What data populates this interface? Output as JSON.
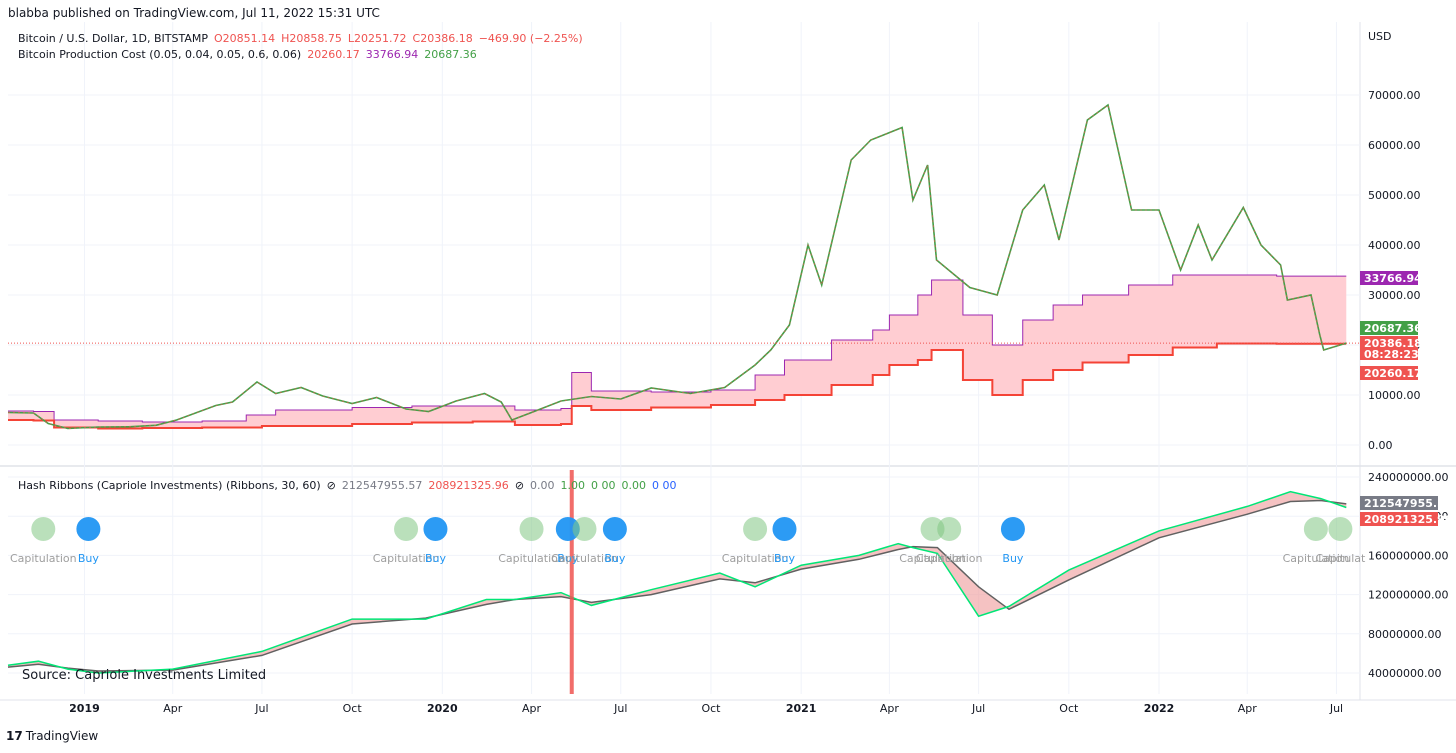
{
  "header": {
    "publisher": "blabba published on TradingView.com, Jul 11, 2022 15:31 UTC",
    "currency": "USD"
  },
  "legend_main": {
    "symbol": "Bitcoin / U.S. Dollar, 1D, BITSTAMP",
    "o": "O20851.14",
    "h": "H20858.75",
    "l": "L20251.72",
    "c": "C20386.18",
    "chg": "−469.90 (−2.25%)"
  },
  "legend_cost": {
    "name": "Bitcoin Production Cost (0.05, 0.04, 0.05, 0.6, 0.06)",
    "v1": "20260.17",
    "v2": "33766.94",
    "v3": "20687.36"
  },
  "legend_hash": {
    "name": "Hash Ribbons (Capriole Investments) (Ribbons, 30, 60)",
    "eye": "⊘",
    "v1": "212547955.57",
    "v2": "208921325.96",
    "eye2": "⊘",
    "v3": "0.00",
    "v4": "1.00",
    "v5": "0 00",
    "v6": "0.00",
    "v7": "0 00"
  },
  "source": "Source: Capriole Investments Limited",
  "footer": {
    "logo": "17",
    "brand": "TradingView"
  },
  "colors": {
    "price_up": "#26a69a",
    "price_down": "#ef5350",
    "ma_green": "#43a047",
    "cost_purple": "#9c27b0",
    "cost_red": "#f44336",
    "fill": "#ffcdd2",
    "hash_green": "#00e676",
    "hash_grey": "#616161"
  },
  "chart_data": [
    {
      "type": "line",
      "title": "Bitcoin / U.S. Dollar, 1D, BITSTAMP",
      "ylabel": "USD",
      "ylim": [
        -5000,
        80000
      ],
      "y_ticks": [
        "0.00",
        "10000.00",
        "20000.00",
        "30000.00",
        "40000.00",
        "50000.00",
        "60000.00",
        "70000.00"
      ],
      "x_ticks": [
        "2019",
        "Apr",
        "Jul",
        "Oct",
        "2020",
        "Apr",
        "Jul",
        "Oct",
        "2021",
        "Apr",
        "Jul",
        "Oct",
        "2022",
        "Apr",
        "Jul"
      ],
      "x_range": [
        "2018-10-15",
        "2022-07-25"
      ],
      "price_tags": [
        "33766.94",
        "20687.36",
        "20386.18",
        "08:28:23",
        "20260.17"
      ],
      "series": [
        {
          "name": "Bitcoin / U.S. Dollar",
          "points": [
            [
              "2018-10-15",
              6500
            ],
            [
              "2018-11-10",
              6400
            ],
            [
              "2018-11-25",
              4300
            ],
            [
              "2018-12-15",
              3300
            ],
            [
              "2019-01-15",
              3600
            ],
            [
              "2019-02-15",
              3650
            ],
            [
              "2019-03-15",
              3950
            ],
            [
              "2019-04-05",
              5000
            ],
            [
              "2019-05-15",
              7900
            ],
            [
              "2019-06-01",
              8600
            ],
            [
              "2019-06-26",
              12600
            ],
            [
              "2019-07-15",
              10300
            ],
            [
              "2019-08-10",
              11500
            ],
            [
              "2019-09-01",
              9800
            ],
            [
              "2019-10-01",
              8300
            ],
            [
              "2019-10-26",
              9500
            ],
            [
              "2019-11-25",
              7200
            ],
            [
              "2019-12-18",
              6700
            ],
            [
              "2020-01-15",
              8800
            ],
            [
              "2020-02-13",
              10300
            ],
            [
              "2020-03-01",
              8600
            ],
            [
              "2020-03-12",
              5000
            ],
            [
              "2020-04-01",
              6500
            ],
            [
              "2020-05-01",
              8800
            ],
            [
              "2020-06-01",
              9700
            ],
            [
              "2020-07-01",
              9200
            ],
            [
              "2020-08-01",
              11400
            ],
            [
              "2020-09-10",
              10300
            ],
            [
              "2020-10-15",
              11500
            ],
            [
              "2020-11-15",
              16000
            ],
            [
              "2020-12-01",
              19000
            ],
            [
              "2020-12-20",
              24000
            ],
            [
              "2021-01-08",
              40000
            ],
            [
              "2021-01-22",
              32000
            ],
            [
              "2021-02-21",
              57000
            ],
            [
              "2021-03-13",
              61000
            ],
            [
              "2021-04-14",
              63500
            ],
            [
              "2021-04-25",
              49000
            ],
            [
              "2021-05-10",
              56000
            ],
            [
              "2021-05-19",
              37000
            ],
            [
              "2021-06-22",
              31500
            ],
            [
              "2021-07-20",
              30000
            ],
            [
              "2021-08-15",
              47000
            ],
            [
              "2021-09-06",
              52000
            ],
            [
              "2021-09-21",
              41000
            ],
            [
              "2021-10-20",
              65000
            ],
            [
              "2021-11-10",
              68000
            ],
            [
              "2021-12-04",
              47000
            ],
            [
              "2022-01-01",
              47000
            ],
            [
              "2022-01-23",
              35000
            ],
            [
              "2022-02-10",
              44000
            ],
            [
              "2022-02-24",
              37000
            ],
            [
              "2022-03-28",
              47500
            ],
            [
              "2022-04-15",
              40000
            ],
            [
              "2022-05-05",
              36000
            ],
            [
              "2022-05-12",
              29000
            ],
            [
              "2022-06-05",
              30000
            ],
            [
              "2022-06-14",
              22000
            ],
            [
              "2022-06-18",
              19000
            ],
            [
              "2022-07-11",
              20386
            ]
          ]
        },
        {
          "name": "Bitcoin Production Cost (upper)",
          "points": [
            [
              "2018-10-15",
              6800
            ],
            [
              "2018-11-10",
              6700
            ],
            [
              "2018-12-01",
              5000
            ],
            [
              "2019-01-15",
              4800
            ],
            [
              "2019-03-01",
              4600
            ],
            [
              "2019-05-01",
              4800
            ],
            [
              "2019-06-15",
              6000
            ],
            [
              "2019-07-15",
              7000
            ],
            [
              "2019-10-01",
              7500
            ],
            [
              "2019-12-01",
              7800
            ],
            [
              "2020-02-01",
              7800
            ],
            [
              "2020-03-15",
              7000
            ],
            [
              "2020-05-01",
              7300
            ],
            [
              "2020-05-12",
              14500
            ],
            [
              "2020-06-01",
              10800
            ],
            [
              "2020-08-01",
              10600
            ],
            [
              "2020-10-01",
              11000
            ],
            [
              "2020-11-15",
              14000
            ],
            [
              "2020-12-15",
              17000
            ],
            [
              "2021-02-01",
              21000
            ],
            [
              "2021-03-15",
              23000
            ],
            [
              "2021-04-01",
              26000
            ],
            [
              "2021-04-30",
              30000
            ],
            [
              "2021-05-14",
              33000
            ],
            [
              "2021-06-15",
              26000
            ],
            [
              "2021-07-15",
              20000
            ],
            [
              "2021-08-15",
              25000
            ],
            [
              "2021-09-15",
              28000
            ],
            [
              "2021-10-15",
              30000
            ],
            [
              "2021-12-01",
              32000
            ],
            [
              "2022-01-15",
              34000
            ],
            [
              "2022-03-01",
              34000
            ],
            [
              "2022-05-01",
              33767
            ],
            [
              "2022-07-11",
              33767
            ]
          ]
        },
        {
          "name": "Bitcoin Production Cost (lower)",
          "points": [
            [
              "2018-10-15",
              5000
            ],
            [
              "2018-11-10",
              4900
            ],
            [
              "2018-12-01",
              3500
            ],
            [
              "2019-01-15",
              3300
            ],
            [
              "2019-03-01",
              3400
            ],
            [
              "2019-05-01",
              3500
            ],
            [
              "2019-07-01",
              3800
            ],
            [
              "2019-10-01",
              4200
            ],
            [
              "2019-12-01",
              4500
            ],
            [
              "2020-02-01",
              4700
            ],
            [
              "2020-03-15",
              4000
            ],
            [
              "2020-05-01",
              4200
            ],
            [
              "2020-05-12",
              7800
            ],
            [
              "2020-06-01",
              7000
            ],
            [
              "2020-08-01",
              7500
            ],
            [
              "2020-10-01",
              8000
            ],
            [
              "2020-11-15",
              9000
            ],
            [
              "2020-12-15",
              10000
            ],
            [
              "2021-02-01",
              12000
            ],
            [
              "2021-03-15",
              14000
            ],
            [
              "2021-04-01",
              16000
            ],
            [
              "2021-04-30",
              17000
            ],
            [
              "2021-05-14",
              19000
            ],
            [
              "2021-06-15",
              13000
            ],
            [
              "2021-07-15",
              10000
            ],
            [
              "2021-08-15",
              13000
            ],
            [
              "2021-09-15",
              15000
            ],
            [
              "2021-10-15",
              16500
            ],
            [
              "2021-12-01",
              18000
            ],
            [
              "2022-01-15",
              19500
            ],
            [
              "2022-03-01",
              20300
            ],
            [
              "2022-05-01",
              20260
            ],
            [
              "2022-07-11",
              20260
            ]
          ]
        }
      ]
    },
    {
      "type": "line",
      "title": "Hash Ribbons (Capriole Investments) (Ribbons, 30, 60)",
      "ylim": [
        20000000,
        240000000
      ],
      "y_ticks": [
        "40000000.00",
        "80000000.00",
        "120000000.00",
        "160000000.00",
        "200000000.00",
        "240000000.00"
      ],
      "price_tags": [
        "212547955.57",
        "208921325.96"
      ],
      "series": [
        {
          "name": "30",
          "points": [
            [
              "2018-10-15",
              48000000
            ],
            [
              "2018-11-15",
              52000000
            ],
            [
              "2018-12-15",
              44000000
            ],
            [
              "2019-01-15",
              40000000
            ],
            [
              "2019-04-01",
              44000000
            ],
            [
              "2019-07-01",
              62000000
            ],
            [
              "2019-10-01",
              95000000
            ],
            [
              "2019-12-15",
              95000000
            ],
            [
              "2020-02-15",
              115000000
            ],
            [
              "2020-03-15",
              115000000
            ],
            [
              "2020-05-01",
              122000000
            ],
            [
              "2020-06-01",
              109000000
            ],
            [
              "2020-08-01",
              125000000
            ],
            [
              "2020-10-10",
              142000000
            ],
            [
              "2020-11-15",
              128000000
            ],
            [
              "2021-01-01",
              150000000
            ],
            [
              "2021-03-01",
              160000000
            ],
            [
              "2021-04-10",
              172000000
            ],
            [
              "2021-04-25",
              168000000
            ],
            [
              "2021-05-20",
              162000000
            ],
            [
              "2021-07-01",
              98000000
            ],
            [
              "2021-08-01",
              108000000
            ],
            [
              "2021-10-01",
              145000000
            ],
            [
              "2022-01-01",
              185000000
            ],
            [
              "2022-04-01",
              210000000
            ],
            [
              "2022-05-15",
              225000000
            ],
            [
              "2022-06-15",
              218000000
            ],
            [
              "2022-07-11",
              208921326
            ]
          ]
        },
        {
          "name": "60",
          "points": [
            [
              "2018-10-15",
              46000000
            ],
            [
              "2018-11-15",
              49000000
            ],
            [
              "2018-12-15",
              45000000
            ],
            [
              "2019-01-15",
              42000000
            ],
            [
              "2019-04-01",
              43000000
            ],
            [
              "2019-07-01",
              58000000
            ],
            [
              "2019-10-01",
              90000000
            ],
            [
              "2019-12-15",
              96000000
            ],
            [
              "2020-02-15",
              110000000
            ],
            [
              "2020-03-15",
              115000000
            ],
            [
              "2020-05-01",
              118000000
            ],
            [
              "2020-06-01",
              112000000
            ],
            [
              "2020-08-01",
              120000000
            ],
            [
              "2020-10-10",
              136000000
            ],
            [
              "2020-11-15",
              132000000
            ],
            [
              "2021-01-01",
              146000000
            ],
            [
              "2021-03-01",
              156000000
            ],
            [
              "2021-04-10",
              166000000
            ],
            [
              "2021-04-25",
              169000000
            ],
            [
              "2021-05-20",
              168000000
            ],
            [
              "2021-07-01",
              128000000
            ],
            [
              "2021-08-01",
              105000000
            ],
            [
              "2021-10-01",
              135000000
            ],
            [
              "2022-01-01",
              178000000
            ],
            [
              "2022-04-01",
              202000000
            ],
            [
              "2022-05-15",
              215000000
            ],
            [
              "2022-06-15",
              216000000
            ],
            [
              "2022-07-11",
              212547956
            ]
          ]
        }
      ],
      "annotations": [
        {
          "label": "Capitulation",
          "date": "2018-11-20"
        },
        {
          "label": "Buy",
          "date": "2019-01-05"
        },
        {
          "label": "Capitulation",
          "date": "2019-11-25"
        },
        {
          "label": "Buy",
          "date": "2019-12-25"
        },
        {
          "label": "Capitulation",
          "date": "2020-04-01"
        },
        {
          "label": "Buy",
          "date": "2020-05-08"
        },
        {
          "label": "Capitulation",
          "date": "2020-05-25"
        },
        {
          "label": "Buy",
          "date": "2020-06-25"
        },
        {
          "label": "Capitulation",
          "date": "2020-11-15"
        },
        {
          "label": "Buy",
          "date": "2020-12-15"
        },
        {
          "label": "Capitulation",
          "date": "2021-05-15"
        },
        {
          "label": "Capitulation",
          "date": "2021-06-01"
        },
        {
          "label": "Buy",
          "date": "2021-08-05"
        },
        {
          "label": "Capitulation",
          "date": "2022-06-10"
        },
        {
          "label": "Capitulat",
          "date": "2022-07-05"
        }
      ]
    }
  ]
}
